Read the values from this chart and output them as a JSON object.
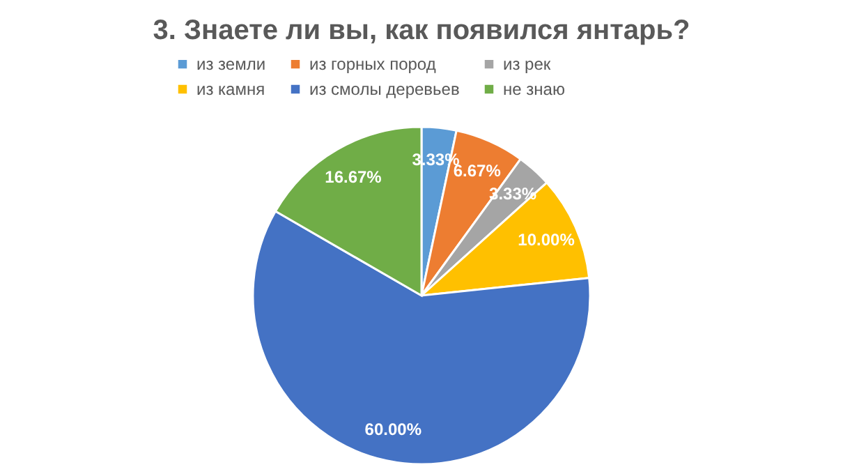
{
  "chart_data": {
    "type": "pie",
    "title": "3. Знаете ли вы, как появился янтарь?",
    "categories": [
      "из земли",
      "из горных пород",
      "из рек",
      "из камня",
      "из смолы деревьев",
      "не знаю"
    ],
    "values": [
      3.33,
      6.67,
      3.33,
      10.0,
      60.0,
      16.67
    ],
    "colors": [
      "#5b9bd5",
      "#ed7d31",
      "#a5a5a5",
      "#ffc000",
      "#4472c4",
      "#70ad47"
    ],
    "value_labels": [
      "3.33%",
      "6.67%",
      "3.33%",
      "10.00%",
      "60.00%",
      "16.67%"
    ],
    "legend": "top"
  }
}
